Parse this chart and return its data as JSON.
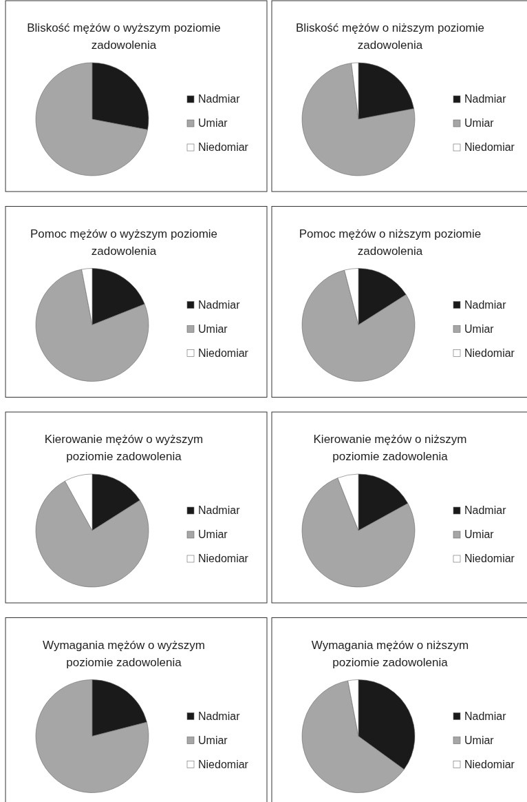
{
  "chart_data": [
    {
      "type": "pie",
      "title": "Bliskość mężów o wyższym poziomie zadowolenia",
      "categories": [
        "Nadmiar",
        "Umiar",
        "Niedomiar"
      ],
      "values": [
        28,
        72,
        0
      ],
      "colors": [
        "#1a1a1a",
        "#a6a6a6",
        "#ffffff"
      ],
      "legend": "right"
    },
    {
      "type": "pie",
      "title": "Bliskość mężów o niższym poziomie zadowolenia",
      "categories": [
        "Nadmiar",
        "Umiar",
        "Niedomiar"
      ],
      "values": [
        22,
        76,
        2
      ],
      "colors": [
        "#1a1a1a",
        "#a6a6a6",
        "#ffffff"
      ],
      "legend": "right"
    },
    {
      "type": "pie",
      "title": "Pomoc mężów o wyższym poziomie zadowolenia",
      "categories": [
        "Nadmiar",
        "Umiar",
        "Niedomiar"
      ],
      "values": [
        19,
        78,
        3
      ],
      "colors": [
        "#1a1a1a",
        "#a6a6a6",
        "#ffffff"
      ],
      "legend": "right"
    },
    {
      "type": "pie",
      "title": "Pomoc mężów o niższym poziomie zadowolenia",
      "categories": [
        "Nadmiar",
        "Umiar",
        "Niedomiar"
      ],
      "values": [
        16,
        80,
        4
      ],
      "colors": [
        "#1a1a1a",
        "#a6a6a6",
        "#ffffff"
      ],
      "legend": "right"
    },
    {
      "type": "pie",
      "title": "Kierowanie mężów o wyższym poziomie zadowolenia",
      "categories": [
        "Nadmiar",
        "Umiar",
        "Niedomiar"
      ],
      "values": [
        16,
        76,
        8
      ],
      "colors": [
        "#1a1a1a",
        "#a6a6a6",
        "#ffffff"
      ],
      "legend": "right"
    },
    {
      "type": "pie",
      "title": "Kierowanie mężów o niższym poziomie zadowolenia",
      "categories": [
        "Nadmiar",
        "Umiar",
        "Niedomiar"
      ],
      "values": [
        17,
        77,
        6
      ],
      "colors": [
        "#1a1a1a",
        "#a6a6a6",
        "#ffffff"
      ],
      "legend": "right"
    },
    {
      "type": "pie",
      "title": "Wymagania mężów o wyższym poziomie zadowolenia",
      "categories": [
        "Nadmiar",
        "Umiar",
        "Niedomiar"
      ],
      "values": [
        21,
        79,
        0
      ],
      "colors": [
        "#1a1a1a",
        "#a6a6a6",
        "#ffffff"
      ],
      "legend": "right"
    },
    {
      "type": "pie",
      "title": "Wymagania mężów o niższym poziomie zadowolenia",
      "categories": [
        "Nadmiar",
        "Umiar",
        "Niedomiar"
      ],
      "values": [
        35,
        62,
        3
      ],
      "colors": [
        "#1a1a1a",
        "#a6a6a6",
        "#ffffff"
      ],
      "legend": "right"
    }
  ]
}
